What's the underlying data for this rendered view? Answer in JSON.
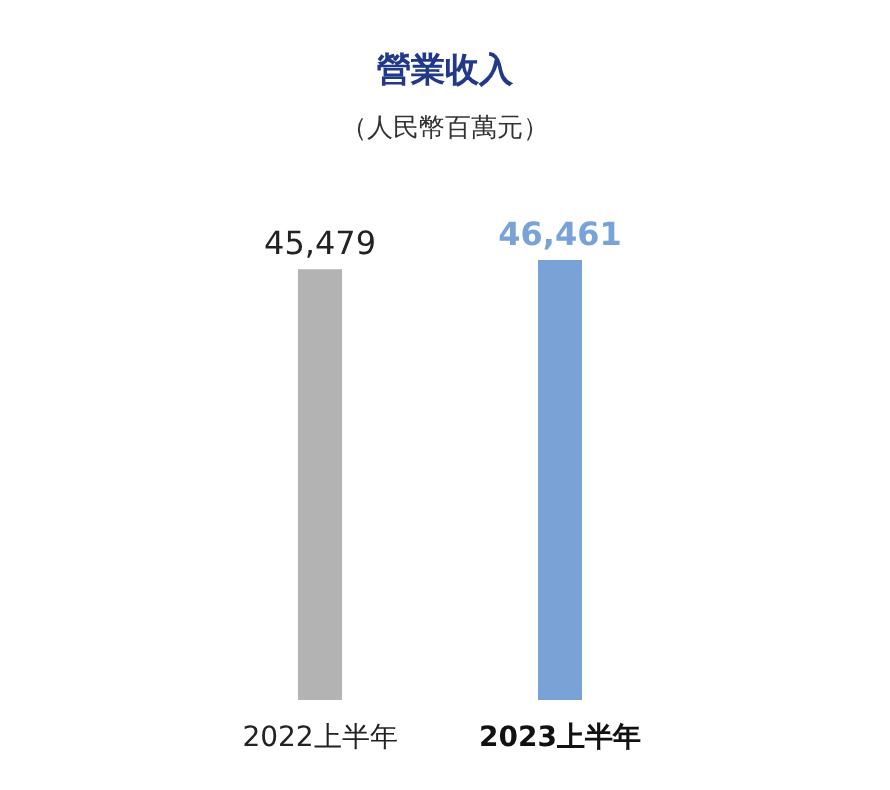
{
  "chart_data": {
    "type": "bar",
    "title": "營業收入",
    "subtitle": "（人民幣百萬元）",
    "categories": [
      "2022上半年",
      "2023上半年"
    ],
    "values": [
      45479,
      46461
    ],
    "value_labels": [
      "45,479",
      "46,461"
    ],
    "colors": [
      "#b3b3b3",
      "#79a3d6"
    ]
  }
}
